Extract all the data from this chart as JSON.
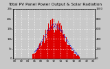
{
  "title": "Total PV Panel Power Output & Solar Radiation",
  "bg_color": "#c8c8c8",
  "plot_bg": "#c8c8c8",
  "grid_color": "#ffffff",
  "pv_color": "#dd0000",
  "radiation_color": "#0000cc",
  "ylim_left": [
    0,
    25000
  ],
  "ylim_right": [
    0,
    1000
  ],
  "title_fontsize": 4.2,
  "tick_fontsize": 2.8,
  "legend_fontsize": 2.8
}
